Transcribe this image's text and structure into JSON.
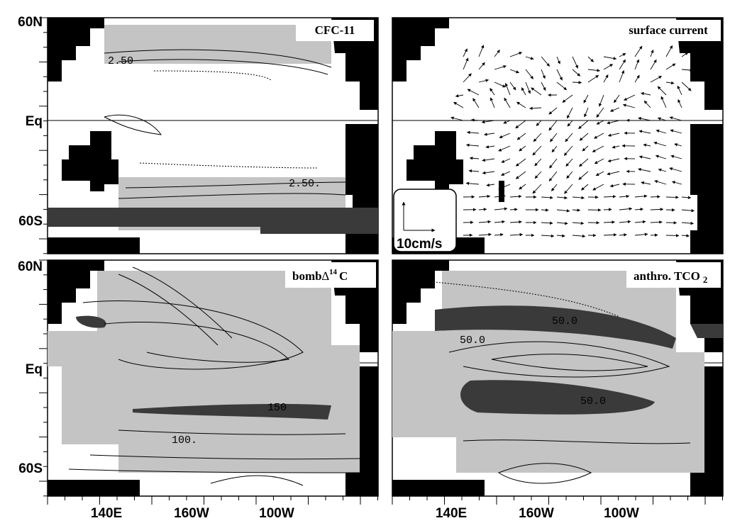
{
  "y_axis_labels": [
    "60N",
    "Eq",
    "60S"
  ],
  "x_axis_labels": [
    "140E",
    "160W",
    "100W"
  ],
  "panels": [
    {
      "title": "CFC-11",
      "contour_labels": [
        "2.50",
        "2.50."
      ]
    },
    {
      "title": "surface current",
      "scale_label": "10cm/s"
    },
    {
      "title": {
        "prefix": "bomb",
        "symbol": "∆",
        "superscript": "14",
        "suffix": "C"
      },
      "contour_labels": [
        "150",
        "100."
      ]
    },
    {
      "title": {
        "text": "anthro. TCO",
        "subscript": "2"
      },
      "contour_labels": [
        "50.0",
        "50.0",
        "50.0"
      ]
    }
  ]
}
